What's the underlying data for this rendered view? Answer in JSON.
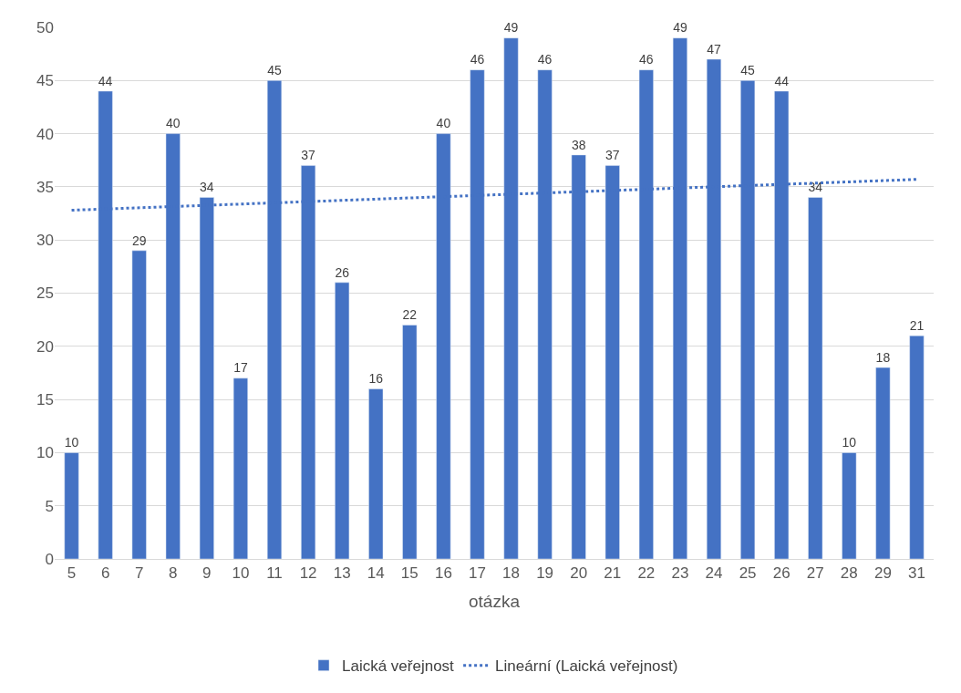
{
  "chart_data": {
    "type": "bar",
    "xlabel": "otázka",
    "categories": [
      "5",
      "6",
      "7",
      "8",
      "9",
      "10",
      "11",
      "12",
      "13",
      "14",
      "15",
      "16",
      "17",
      "18",
      "19",
      "20",
      "21",
      "22",
      "23",
      "24",
      "25",
      "26",
      "27",
      "28",
      "29",
      "31"
    ],
    "series": [
      {
        "name": "Laická veřejnost",
        "color": "#4472c4",
        "values": [
          10,
          44,
          29,
          40,
          34,
          17,
          45,
          37,
          26,
          16,
          22,
          40,
          46,
          49,
          46,
          38,
          37,
          46,
          49,
          47,
          45,
          44,
          34,
          10,
          18,
          21
        ],
        "data_labels": true
      },
      {
        "name": "Lineární (Laická veřejnost)",
        "type": "line",
        "line_style": "dotted",
        "color": "#4472c4",
        "x": [
          "5",
          "31"
        ],
        "values": [
          32.8,
          35.7
        ]
      }
    ],
    "ylim": [
      0,
      50
    ],
    "yticks": [
      0,
      5,
      10,
      15,
      20,
      25,
      30,
      35,
      40,
      45,
      50
    ],
    "grid": "y",
    "legend": "bottom"
  }
}
